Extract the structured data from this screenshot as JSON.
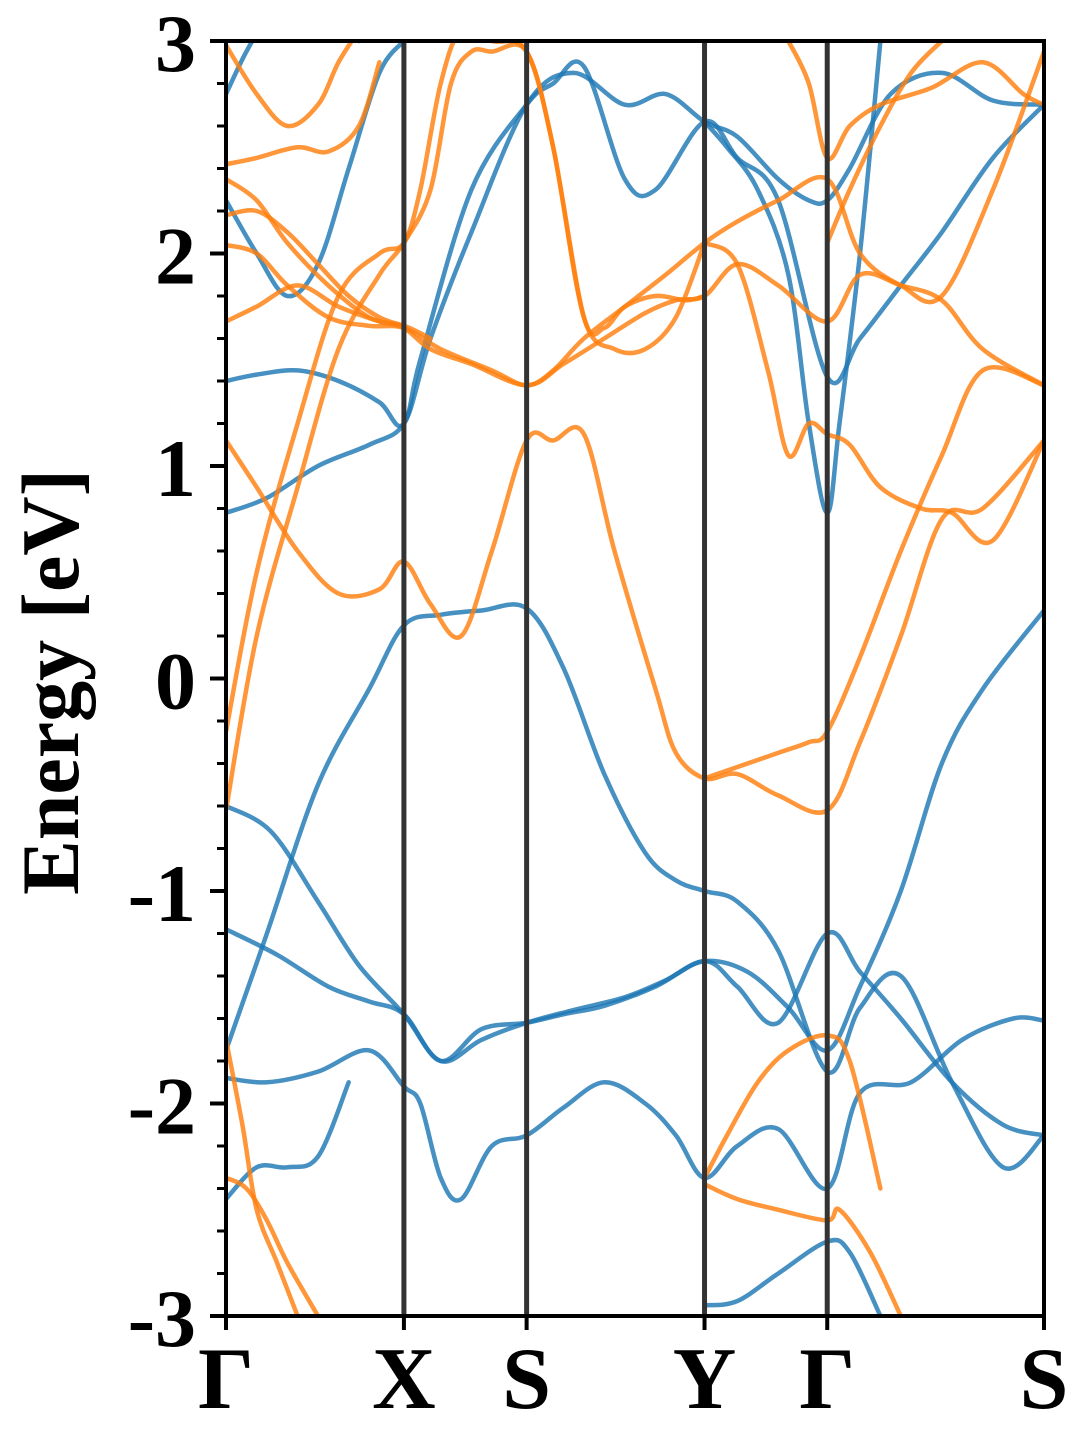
{
  "chart_data": {
    "type": "line",
    "title": "",
    "ylabel": "Energy [eV]",
    "xlabel": "",
    "ylim": [
      -3,
      3
    ],
    "y_ticks": [
      -3,
      -2,
      -1,
      0,
      1,
      2,
      3
    ],
    "y_tick_labels": [
      "-3",
      "-2",
      "-1",
      "0",
      "1",
      "2",
      "3"
    ],
    "y_minor_step": 0.2,
    "grid": false,
    "legend": "none",
    "k_path": {
      "labels": [
        "Γ",
        "X",
        "S",
        "Y",
        "Γ",
        "S"
      ],
      "positions": [
        0,
        0.87,
        1.47,
        2.34,
        2.94,
        4.0
      ],
      "vlines": [
        0.87,
        1.47,
        2.34,
        2.94
      ]
    },
    "colors": {
      "blue": "#1f77b4",
      "orange": "#ff7f0e",
      "vline": "#333333",
      "axis": "#000000"
    },
    "series": [
      {
        "color": "blue",
        "x": [
          0,
          0.22,
          0.45,
          0.65,
          0.87,
          1.05,
          1.25,
          1.47,
          1.7,
          1.95,
          2.15,
          2.34,
          2.55,
          2.75,
          2.94,
          3.1,
          3.3,
          3.5,
          3.7,
          4.0
        ],
        "y": [
          -0.6,
          -0.72,
          -1.05,
          -1.35,
          -1.58,
          -1.8,
          -1.7,
          -1.62,
          -1.56,
          -1.5,
          -1.42,
          -1.33,
          -1.38,
          -1.55,
          -1.75,
          -1.45,
          -1.0,
          -0.4,
          -0.05,
          0.32
        ]
      },
      {
        "color": "blue",
        "x": [
          0,
          0.2,
          0.45,
          0.7,
          0.87,
          1.05,
          1.25,
          1.47,
          1.65,
          1.85,
          2.05,
          2.2,
          2.34,
          2.5,
          2.7,
          2.94,
          3.1,
          3.3,
          3.55,
          3.8,
          4.0
        ],
        "y": [
          -1.75,
          -1.2,
          -0.5,
          -0.05,
          0.25,
          0.3,
          0.32,
          0.33,
          0.05,
          -0.45,
          -0.82,
          -0.95,
          -1.0,
          -1.05,
          -1.28,
          -1.85,
          -1.55,
          -1.4,
          -1.9,
          -2.3,
          -2.15
        ]
      },
      {
        "color": "blue",
        "x": [
          0,
          0.2,
          0.45,
          0.7,
          0.87,
          0.95,
          1.05,
          1.15,
          1.3,
          1.47,
          1.65,
          1.85,
          2.05,
          2.2,
          2.34,
          2.5,
          2.7,
          2.94,
          3.1,
          3.35,
          3.6,
          3.85,
          4.0
        ],
        "y": [
          -1.88,
          -1.9,
          -1.85,
          -1.75,
          -1.92,
          -2.0,
          -2.35,
          -2.45,
          -2.2,
          -2.15,
          -2.02,
          -1.9,
          -2.0,
          -2.15,
          -2.35,
          -2.2,
          -2.12,
          -2.4,
          -1.95,
          -1.9,
          -1.7,
          -1.6,
          -1.61
        ]
      },
      {
        "color": "blue",
        "x": [
          0,
          0.25,
          0.5,
          0.7,
          0.87,
          1.05,
          1.25,
          1.47,
          1.65,
          1.85,
          2.1,
          2.34,
          2.5,
          2.7,
          2.94,
          3.1,
          3.3,
          3.55,
          3.8,
          4.0
        ],
        "y": [
          -1.18,
          -1.3,
          -1.45,
          -1.52,
          -1.58,
          -1.8,
          -1.65,
          -1.62,
          -1.58,
          -1.54,
          -1.45,
          -1.33,
          -1.45,
          -1.62,
          -1.2,
          -1.38,
          -1.6,
          -1.9,
          -2.1,
          -2.15
        ]
      },
      {
        "color": "blue",
        "x": [
          0,
          0.2,
          0.45,
          0.7,
          0.87,
          0.95,
          1.2,
          1.47,
          1.6,
          1.75,
          1.95,
          2.1,
          2.34,
          2.5,
          2.7,
          2.94,
          3.1,
          3.3,
          3.5,
          3.75,
          4.0
        ],
        "y": [
          0.78,
          0.85,
          1.0,
          1.1,
          1.2,
          1.5,
          2.3,
          2.7,
          2.8,
          2.88,
          2.35,
          2.3,
          2.62,
          2.45,
          2.25,
          1.42,
          1.6,
          1.85,
          2.1,
          2.45,
          2.7
        ]
      },
      {
        "color": "blue",
        "x": [
          0,
          0.15,
          0.35,
          0.55,
          0.75,
          0.87,
          1.0,
          1.2,
          1.47,
          1.7,
          1.95,
          2.15,
          2.34,
          2.5,
          2.7,
          2.85,
          2.94,
          3.05,
          3.25,
          3.5,
          3.75,
          4.0
        ],
        "y": [
          1.4,
          1.43,
          1.45,
          1.4,
          1.3,
          1.2,
          1.6,
          2.1,
          2.7,
          2.85,
          2.7,
          2.75,
          2.62,
          2.55,
          2.35,
          2.25,
          2.25,
          2.4,
          2.75,
          2.85,
          2.72,
          2.7
        ]
      },
      {
        "color": "blue",
        "x": [
          0,
          0.15,
          0.3,
          0.45,
          0.6,
          0.75,
          0.87
        ],
        "y": [
          2.25,
          2.0,
          1.8,
          1.95,
          2.4,
          2.85,
          3.0
        ]
      },
      {
        "color": "blue",
        "x": [
          0,
          0.1,
          0.2,
          0.35,
          0.5,
          0.65
        ],
        "y": [
          2.75,
          2.95,
          3.1,
          3.2,
          3.1,
          3.0
        ]
      },
      {
        "color": "blue",
        "x": [
          2.34,
          2.45,
          2.6,
          2.75,
          2.85,
          2.94,
          3.0,
          3.1,
          3.2
        ],
        "y": [
          2.62,
          2.5,
          2.3,
          1.9,
          1.2,
          0.78,
          1.2,
          2.0,
          3.0
        ]
      },
      {
        "color": "blue",
        "x": [
          0,
          0.15,
          0.3,
          0.45,
          0.6
        ],
        "y": [
          -2.45,
          -2.3,
          -2.3,
          -2.25,
          -1.9
        ]
      },
      {
        "color": "blue",
        "x": [
          2.34,
          2.5,
          2.7,
          2.94,
          3.05,
          3.2
        ],
        "y": [
          -2.95,
          -2.93,
          -2.8,
          -2.65,
          -2.7,
          -3.0
        ]
      },
      {
        "color": "orange",
        "x": [
          0,
          0.15,
          0.35,
          0.55,
          0.75,
          0.87,
          0.95,
          1.05,
          1.15,
          1.3,
          1.47,
          1.6,
          1.75,
          1.85,
          1.95,
          2.1,
          2.25,
          2.34
        ],
        "y": [
          -0.25,
          0.5,
          1.2,
          1.8,
          2.0,
          2.05,
          2.3,
          2.8,
          3.05,
          3.0,
          2.95,
          2.5,
          1.7,
          1.65,
          1.75,
          1.8,
          1.78,
          1.8
        ]
      },
      {
        "color": "orange",
        "x": [
          0,
          0.15,
          0.35,
          0.55,
          0.75,
          0.87,
          1.0,
          1.1,
          1.2,
          1.3,
          1.47,
          1.6,
          1.75,
          1.9,
          2.05,
          2.2,
          2.34
        ],
        "y": [
          -0.62,
          0.2,
          0.9,
          1.55,
          1.9,
          2.05,
          2.3,
          2.8,
          2.95,
          2.95,
          2.95,
          2.5,
          1.7,
          1.55,
          1.55,
          1.7,
          2.05
        ]
      },
      {
        "color": "orange",
        "x": [
          0,
          0.15,
          0.35,
          0.55,
          0.75,
          0.87,
          1.0,
          1.15,
          1.3,
          1.47,
          1.6,
          1.75,
          1.9,
          2.1,
          2.2,
          2.34,
          2.5,
          2.7,
          2.94,
          3.1,
          3.3,
          3.5,
          3.7,
          4.0
        ],
        "y": [
          1.12,
          0.9,
          0.6,
          0.4,
          0.42,
          0.55,
          0.35,
          0.2,
          0.6,
          1.12,
          1.12,
          1.15,
          0.6,
          -0.05,
          -0.35,
          -0.47,
          -0.45,
          -0.55,
          -0.62,
          -0.3,
          0.2,
          0.75,
          0.8,
          1.12
        ]
      },
      {
        "color": "orange",
        "x": [
          0,
          0.15,
          0.35,
          0.55,
          0.75,
          0.87,
          1.0,
          1.2,
          1.47,
          1.65,
          1.85,
          2.05,
          2.2,
          2.34,
          2.5,
          2.7,
          2.94,
          3.1,
          3.3,
          3.5,
          3.7,
          4.0
        ],
        "y": [
          1.68,
          1.75,
          1.85,
          1.75,
          1.68,
          1.65,
          1.55,
          1.48,
          1.38,
          1.48,
          1.6,
          1.72,
          1.78,
          1.8,
          1.95,
          1.85,
          1.68,
          1.9,
          1.85,
          1.78,
          1.55,
          1.38
        ]
      },
      {
        "color": "orange",
        "x": [
          0,
          0.15,
          0.3,
          0.5,
          0.7,
          0.87,
          1.05,
          1.3,
          1.47,
          1.6,
          1.75,
          1.95,
          2.15,
          2.34,
          2.5,
          2.7,
          2.94,
          3.1,
          3.3,
          3.5,
          3.75,
          4.0
        ],
        "y": [
          2.04,
          2.0,
          1.85,
          1.7,
          1.66,
          1.65,
          1.55,
          1.45,
          1.38,
          1.45,
          1.6,
          1.75,
          1.9,
          2.05,
          2.15,
          2.25,
          2.35,
          2.0,
          1.85,
          1.8,
          2.3,
          2.95
        ]
      },
      {
        "color": "orange",
        "x": [
          0,
          0.15,
          0.3,
          0.45,
          0.6,
          0.75,
          0.87
        ],
        "y": [
          2.18,
          2.2,
          2.1,
          1.95,
          1.8,
          1.7,
          1.66
        ]
      },
      {
        "color": "orange",
        "x": [
          0,
          0.15,
          0.3,
          0.5,
          0.7,
          0.87,
          1.0
        ],
        "y": [
          2.35,
          2.25,
          2.05,
          1.85,
          1.7,
          1.66,
          1.6
        ]
      },
      {
        "color": "orange",
        "x": [
          0,
          0.15,
          0.35,
          0.5,
          0.65,
          0.75
        ],
        "y": [
          2.42,
          2.45,
          2.5,
          2.48,
          2.6,
          2.9
        ]
      },
      {
        "color": "orange",
        "x": [
          0,
          0.15,
          0.3,
          0.45,
          0.55,
          0.65
        ],
        "y": [
          2.98,
          2.75,
          2.6,
          2.7,
          2.9,
          3.05
        ]
      },
      {
        "color": "orange",
        "x": [
          2.34,
          2.5,
          2.65,
          2.75,
          2.85,
          2.94,
          3.05,
          3.2,
          3.4,
          3.55,
          3.75,
          4.0
        ],
        "y": [
          2.05,
          1.95,
          1.45,
          1.05,
          1.2,
          1.15,
          1.1,
          0.9,
          0.8,
          0.78,
          0.65,
          1.12
        ]
      },
      {
        "color": "orange",
        "x": [
          2.34,
          2.55,
          2.7,
          2.85,
          2.94,
          3.1,
          3.3,
          3.5,
          3.7,
          4.0
        ],
        "y": [
          -0.47,
          -0.4,
          -0.35,
          -0.3,
          -0.25,
          0.1,
          0.6,
          1.05,
          1.45,
          1.38
        ]
      },
      {
        "color": "orange",
        "x": [
          2.75,
          2.85,
          2.94,
          3.05,
          3.2,
          3.45,
          3.7,
          3.9,
          4.0
        ],
        "y": [
          3.0,
          2.8,
          2.45,
          2.6,
          2.7,
          2.78,
          2.9,
          2.75,
          2.7
        ]
      },
      {
        "color": "orange",
        "x": [
          2.94,
          3.05,
          3.2,
          3.35,
          3.5
        ],
        "y": [
          2.05,
          2.3,
          2.6,
          2.85,
          3.0
        ]
      },
      {
        "color": "orange",
        "x": [
          2.34,
          2.45,
          2.6,
          2.75,
          2.94,
          3.05,
          3.2
        ],
        "y": [
          -2.35,
          -2.15,
          -1.9,
          -1.75,
          -1.68,
          -1.8,
          -2.4
        ]
      },
      {
        "color": "orange",
        "x": [
          2.34,
          2.5,
          2.7,
          2.94,
          3.0,
          3.15,
          3.3
        ],
        "y": [
          -2.38,
          -2.45,
          -2.5,
          -2.55,
          -2.5,
          -2.7,
          -3.0
        ]
      },
      {
        "color": "orange",
        "x": [
          0,
          0.08,
          0.15,
          0.25,
          0.35
        ],
        "y": [
          -1.7,
          -2.1,
          -2.5,
          -2.75,
          -3.0
        ]
      },
      {
        "color": "orange",
        "x": [
          0,
          0.1,
          0.2,
          0.3,
          0.45
        ],
        "y": [
          -2.35,
          -2.4,
          -2.55,
          -2.75,
          -3.0
        ]
      }
    ]
  }
}
